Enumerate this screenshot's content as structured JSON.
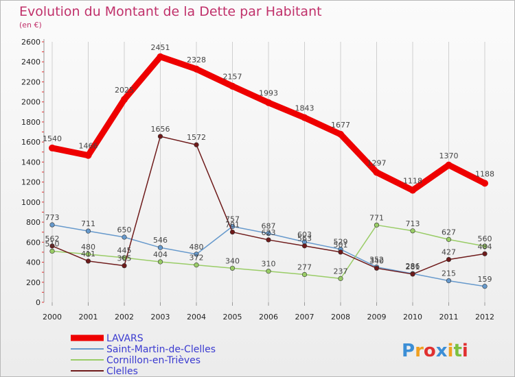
{
  "chart_data": {
    "type": "line",
    "title": "Evolution du Montant de la Dette par Habitant",
    "subtitle": "(en €)",
    "xlabel": "",
    "ylabel": "",
    "categories": [
      "2000",
      "2001",
      "2002",
      "2003",
      "2004",
      "2005",
      "2006",
      "2007",
      "2008",
      "2009",
      "2010",
      "2011",
      "2012"
    ],
    "ylim": [
      0,
      2600
    ],
    "yticks": [
      0,
      200,
      400,
      600,
      800,
      1000,
      1200,
      1400,
      1600,
      1800,
      2000,
      2200,
      2400,
      2600
    ],
    "grid": "vertical",
    "legend_position": "bottom-left",
    "series": [
      {
        "name": "LAVARS",
        "color": "#ee0000",
        "values": [
          1540,
          1466,
          2025,
          2451,
          2328,
          2157,
          1993,
          1843,
          1677,
          1297,
          1118,
          1370,
          1188
        ]
      },
      {
        "name": "Saint-Martin-de-Clelles",
        "color": "#6699cc",
        "values": [
          773,
          711,
          650,
          546,
          480,
          757,
          687,
          603,
          529,
          352,
          286,
          215,
          159
        ]
      },
      {
        "name": "Cornillon-en-Trièves",
        "color": "#99cc66",
        "values": [
          510,
          480,
          445,
          404,
          372,
          340,
          310,
          277,
          237,
          771,
          713,
          627,
          560
        ]
      },
      {
        "name": "Clelles",
        "color": "#6e1a1a",
        "values": [
          562,
          411,
          365,
          1656,
          1572,
          701,
          623,
          563,
          501,
          340,
          281,
          427,
          484
        ]
      }
    ]
  },
  "branding": {
    "logo_text": "Proxiti",
    "logo_colors": [
      "#3b8ed6",
      "#f0a020",
      "#e03030",
      "#3b8ed6",
      "#f0a020",
      "#7cc040",
      "#e03030"
    ]
  }
}
